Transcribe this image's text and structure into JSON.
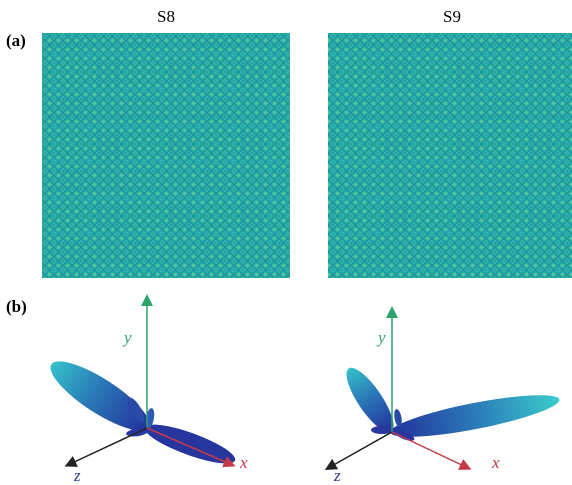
{
  "panel_labels": [
    "(a)",
    "(b)"
  ],
  "columns": [
    {
      "title": "S8",
      "axes": {
        "x": "x",
        "y": "y",
        "z": "z"
      }
    },
    {
      "title": "S9",
      "axes": {
        "x": "x",
        "y": "y",
        "z": "z"
      }
    }
  ]
}
